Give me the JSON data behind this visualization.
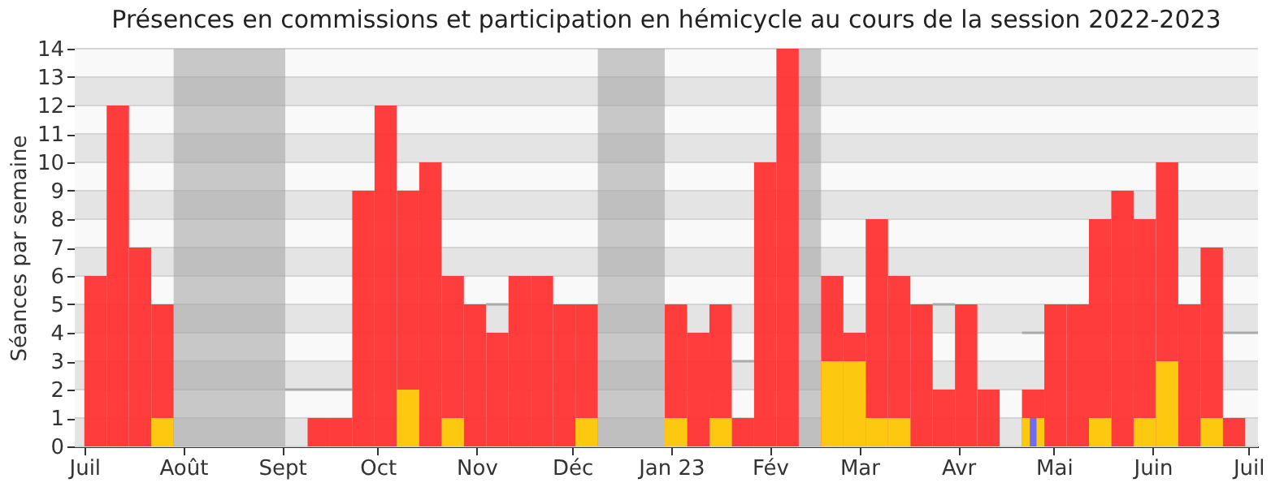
{
  "chart_data": {
    "type": "bar",
    "title": "Présences en commissions et participation en hémicycle au cours de la session 2022-2023",
    "ylabel": "Séances par semaine",
    "x": [
      "2022-07-01",
      "2022-07-08",
      "2022-07-15",
      "2022-07-22",
      "2022-07-29",
      "2022-08-05",
      "2022-08-12",
      "2022-08-19",
      "2022-08-26",
      "2022-09-02",
      "2022-09-09",
      "2022-09-16",
      "2022-09-23",
      "2022-09-30",
      "2022-10-07",
      "2022-10-14",
      "2022-10-21",
      "2022-10-28",
      "2022-11-04",
      "2022-11-11",
      "2022-11-18",
      "2022-11-25",
      "2022-12-02",
      "2022-12-09",
      "2022-12-16",
      "2022-12-23",
      "2022-12-30",
      "2023-01-06",
      "2023-01-13",
      "2023-01-20",
      "2023-01-27",
      "2023-02-03",
      "2023-02-10",
      "2023-02-17",
      "2023-02-24",
      "2023-03-03",
      "2023-03-10",
      "2023-03-17",
      "2023-03-24",
      "2023-03-31",
      "2023-04-07",
      "2023-04-14",
      "2023-04-21",
      "2023-04-28",
      "2023-05-05",
      "2023-05-12",
      "2023-05-19",
      "2023-05-26",
      "2023-06-02",
      "2023-06-09",
      "2023-06-16",
      "2023-06-23"
    ],
    "series": [
      {
        "color": "#ff3333",
        "values": [
          6,
          12,
          7,
          5,
          null,
          null,
          null,
          null,
          null,
          null,
          1,
          1,
          9,
          12,
          9,
          10,
          6,
          5,
          4,
          6,
          6,
          5,
          5,
          null,
          null,
          null,
          5,
          4,
          5,
          1,
          10,
          14,
          null,
          6,
          4,
          8,
          6,
          5,
          2,
          5,
          2,
          null,
          2,
          5,
          5,
          8,
          9,
          8,
          10,
          5,
          7,
          1
        ]
      },
      {
        "color": "#fdd10e",
        "values": [
          null,
          null,
          null,
          1,
          null,
          null,
          null,
          null,
          null,
          null,
          null,
          null,
          null,
          null,
          2,
          null,
          1,
          null,
          null,
          null,
          null,
          null,
          1,
          null,
          null,
          null,
          1,
          null,
          1,
          null,
          null,
          null,
          null,
          3,
          3,
          1,
          1,
          null,
          null,
          null,
          null,
          null,
          1,
          null,
          null,
          1,
          null,
          1,
          3,
          null,
          1,
          null
        ]
      },
      {
        "color": "#6666ff",
        "values": [
          null,
          null,
          null,
          null,
          null,
          null,
          null,
          null,
          null,
          null,
          null,
          null,
          null,
          null,
          null,
          null,
          null,
          null,
          null,
          null,
          null,
          null,
          null,
          null,
          null,
          null,
          null,
          null,
          null,
          null,
          null,
          null,
          null,
          null,
          null,
          null,
          null,
          null,
          null,
          null,
          null,
          null,
          1,
          null,
          null,
          null,
          null,
          null,
          null,
          null,
          null,
          null
        ]
      },
      {
        "type": "step",
        "color": "#aaaaaa",
        "x": [
          "2022-09-02",
          "2022-09-09",
          "2022-09-16",
          "2022-09-23",
          "2022-09-30",
          "2022-10-07",
          "2022-10-14",
          "2022-10-21",
          "2022-10-28",
          "2022-11-04",
          "2022-11-11",
          "2022-11-18",
          "2022-11-25",
          "2022-12-02",
          "2022-12-09",
          "2022-12-16",
          "2022-12-23",
          "2022-12-30",
          "2023-01-06",
          "2023-01-13",
          "2023-01-20",
          "2023-01-27",
          "2023-02-03",
          "2023-02-10",
          "2023-02-17",
          "2023-02-24",
          "2023-03-03",
          "2023-03-10",
          "2023-03-17",
          "2023-03-24",
          "2023-03-31",
          "2023-04-07",
          "2023-04-14",
          "2023-04-21",
          "2023-04-28",
          "2023-05-05",
          "2023-05-12",
          "2023-05-19",
          "2023-05-26",
          "2023-06-02",
          "2023-06-09",
          "2023-06-16",
          "2023-06-23",
          "2023-06-30",
          "2023-07-04"
        ],
        "values": [
          2,
          2,
          2,
          null,
          null,
          null,
          null,
          null,
          null,
          5,
          null,
          null,
          null,
          null,
          null,
          null,
          null,
          null,
          null,
          null,
          3,
          null,
          null,
          null,
          null,
          null,
          null,
          null,
          null,
          5,
          null,
          null,
          null,
          4,
          null,
          null,
          null,
          null,
          null,
          null,
          null,
          null,
          4,
          4,
          4
        ]
      }
    ],
    "xlim": [
      "2022-06-28",
      "2023-07-04"
    ],
    "xticks": [
      {
        "value": "2022-07-01",
        "label": "Juil"
      },
      {
        "value": "2022-08-01",
        "label": "Août"
      },
      {
        "value": "2022-09-01",
        "label": "Sept"
      },
      {
        "value": "2022-10-01",
        "label": "Oct"
      },
      {
        "value": "2022-11-01",
        "label": "Nov"
      },
      {
        "value": "2022-12-01",
        "label": "Déc"
      },
      {
        "value": "2023-01-01",
        "label": "Jan 23"
      },
      {
        "value": "2023-02-01",
        "label": "Fév"
      },
      {
        "value": "2023-03-01",
        "label": "Mar"
      },
      {
        "value": "2023-04-01",
        "label": "Avr"
      },
      {
        "value": "2023-05-01",
        "label": "Mai"
      },
      {
        "value": "2023-06-01",
        "label": "Juin"
      },
      {
        "value": "2023-07-01",
        "label": "Juil"
      }
    ],
    "ylim": [
      0,
      14
    ],
    "yticks": [
      0,
      1,
      2,
      3,
      4,
      5,
      6,
      7,
      8,
      9,
      10,
      11,
      12,
      13,
      14
    ],
    "bands": [
      {
        "axis": "x",
        "from": "2022-07-29",
        "to": "2022-09-02",
        "color": "#a0a0a0"
      },
      {
        "axis": "x",
        "from": "2022-12-09",
        "to": "2022-12-30",
        "color": "#a0a0a0"
      },
      {
        "axis": "x",
        "from": "2023-02-10",
        "to": "2023-02-17",
        "color": "#a0a0a0"
      }
    ],
    "grid": "y"
  }
}
